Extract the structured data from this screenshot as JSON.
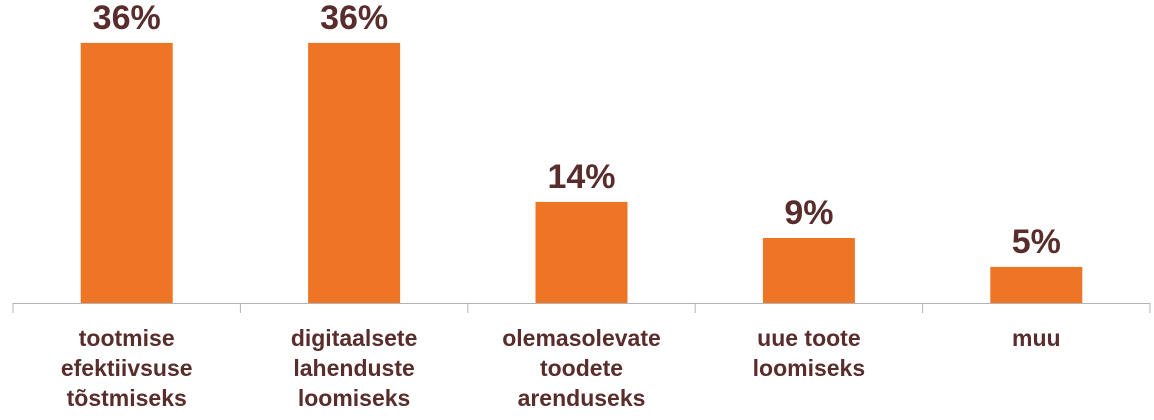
{
  "chart_data": {
    "type": "bar",
    "categories": [
      "tootmise efektiivsuse tõstmiseks",
      "digitaalsete lahenduste loomiseks",
      "olemasolevate toodete arenduseks",
      "uue toote loomiseks",
      "muu"
    ],
    "category_lines": [
      [
        "tootmise",
        "efektiivsuse",
        "tõstmiseks"
      ],
      [
        "digitaalsete",
        "lahenduste",
        "loomiseks"
      ],
      [
        "olemasolevate",
        "toodete",
        "arenduseks"
      ],
      [
        "uue toote",
        "loomiseks"
      ],
      [
        "muu"
      ]
    ],
    "values": [
      36,
      36,
      14,
      9,
      5
    ],
    "data_labels": [
      "36%",
      "36%",
      "14%",
      "9%",
      "5%"
    ],
    "title": "",
    "xlabel": "",
    "ylabel": "",
    "ylim": [
      0,
      40
    ],
    "grid": false,
    "legend": "none"
  },
  "colors": {
    "bar": "#ee7526",
    "value_text": "#5a2d2d",
    "category_text": "#5a2d2d",
    "axis": "#b3b3b3"
  }
}
